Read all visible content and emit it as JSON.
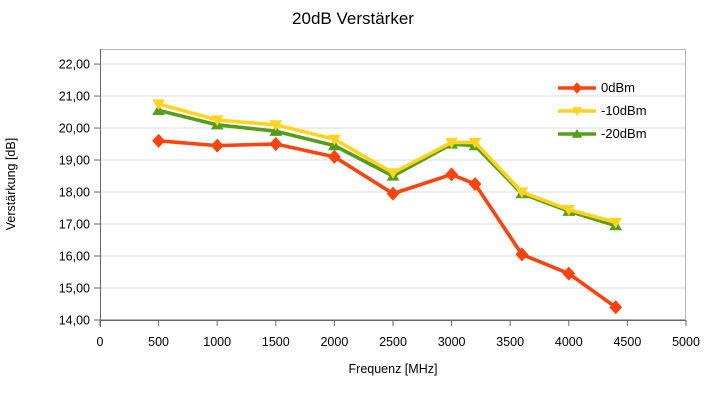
{
  "title": "20dB Verstärker",
  "legend": {
    "items": [
      {
        "label": "0dBm",
        "color": "#ff420e",
        "marker": "diamond"
      },
      {
        "label": "-10dBm",
        "color": "#ffd320",
        "marker": "triangle-down"
      },
      {
        "label": "-20dBm",
        "color": "#579d1c",
        "marker": "triangle-up"
      }
    ]
  },
  "colors": {
    "background": "#ffffff",
    "grid": "#d9d9d9",
    "border": "#b3b3b3",
    "axis": "#666666",
    "text": "#000000"
  },
  "chart_data": {
    "type": "line",
    "title": "20dB Verstärker",
    "xlabel": "Frequenz [MHz]",
    "ylabel": "Verstärkung [dB]",
    "x": [
      500,
      1000,
      1500,
      2000,
      2500,
      3000,
      3200,
      3600,
      4000,
      4400
    ],
    "series": [
      {
        "name": "0dBm",
        "color": "#ff420e",
        "marker": "diamond",
        "values": [
          19.6,
          19.45,
          19.5,
          19.1,
          17.95,
          18.55,
          18.25,
          16.05,
          15.45,
          14.4
        ]
      },
      {
        "name": "-10dBm",
        "color": "#ffd320",
        "marker": "triangle-down",
        "values": [
          20.75,
          20.25,
          20.1,
          19.65,
          18.6,
          19.55,
          19.55,
          18.0,
          17.45,
          17.05
        ]
      },
      {
        "name": "-20dBm",
        "color": "#579d1c",
        "marker": "triangle-up",
        "values": [
          20.55,
          20.1,
          19.9,
          19.45,
          18.5,
          19.5,
          19.45,
          17.95,
          17.4,
          16.95
        ]
      }
    ],
    "xlim": [
      0,
      5000
    ],
    "ylim": [
      14,
      22.47
    ],
    "x_ticks": [
      0,
      500,
      1000,
      1500,
      2000,
      2500,
      3000,
      3500,
      4000,
      4500,
      5000
    ],
    "x_tick_labels": [
      "0",
      "500",
      "1000",
      "1500",
      "2000",
      "2500",
      "3000",
      "3500",
      "4000",
      "4500",
      "5000"
    ],
    "y_ticks": [
      14,
      15,
      16,
      17,
      18,
      19,
      20,
      21,
      22
    ],
    "y_tick_labels": [
      "14,00",
      "15,00",
      "16,00",
      "17,00",
      "18,00",
      "19,00",
      "20,00",
      "21,00",
      "22,00"
    ],
    "grid": "horizontal",
    "legend_position": "top-right-inside",
    "draw_order": [
      0,
      2,
      1
    ]
  }
}
